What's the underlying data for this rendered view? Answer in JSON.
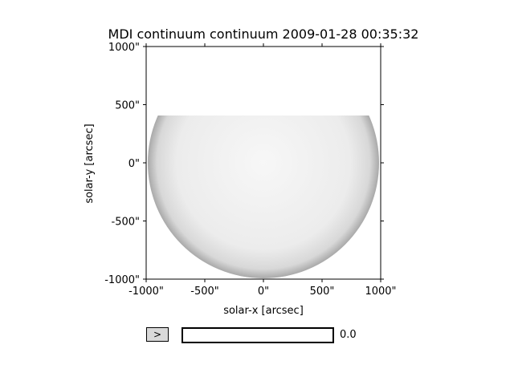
{
  "figure": {
    "title": "MDI continuum continuum 2009-01-28 00:35:32",
    "xlabel": "solar-x [arcsec]",
    "ylabel": "solar-y [arcsec]",
    "x_ticks": [
      "-1000\"",
      "-500\"",
      "0\"",
      "500\"",
      "1000\""
    ],
    "y_ticks": [
      "1000\"",
      "500\"",
      "0\"",
      "-500\"",
      "-1000\""
    ]
  },
  "controls": {
    "play_label": ">",
    "slider_value": "0.0",
    "slider_fraction": 0.0
  },
  "chart_data": {
    "type": "heatmap",
    "title": "MDI continuum continuum 2009-01-28 00:35:32",
    "xlabel": "solar-x [arcsec]",
    "ylabel": "solar-y [arcsec]",
    "xlim": [
      -1000,
      1000
    ],
    "ylim": [
      -1000,
      1000
    ],
    "x_tick_values": [
      -1000,
      -500,
      0,
      500,
      1000
    ],
    "y_tick_values": [
      1000,
      500,
      0,
      -500,
      -1000
    ],
    "disk_radius_arcsec": 985,
    "visible_y_max_arcsec": 410,
    "colormap": "gray"
  }
}
